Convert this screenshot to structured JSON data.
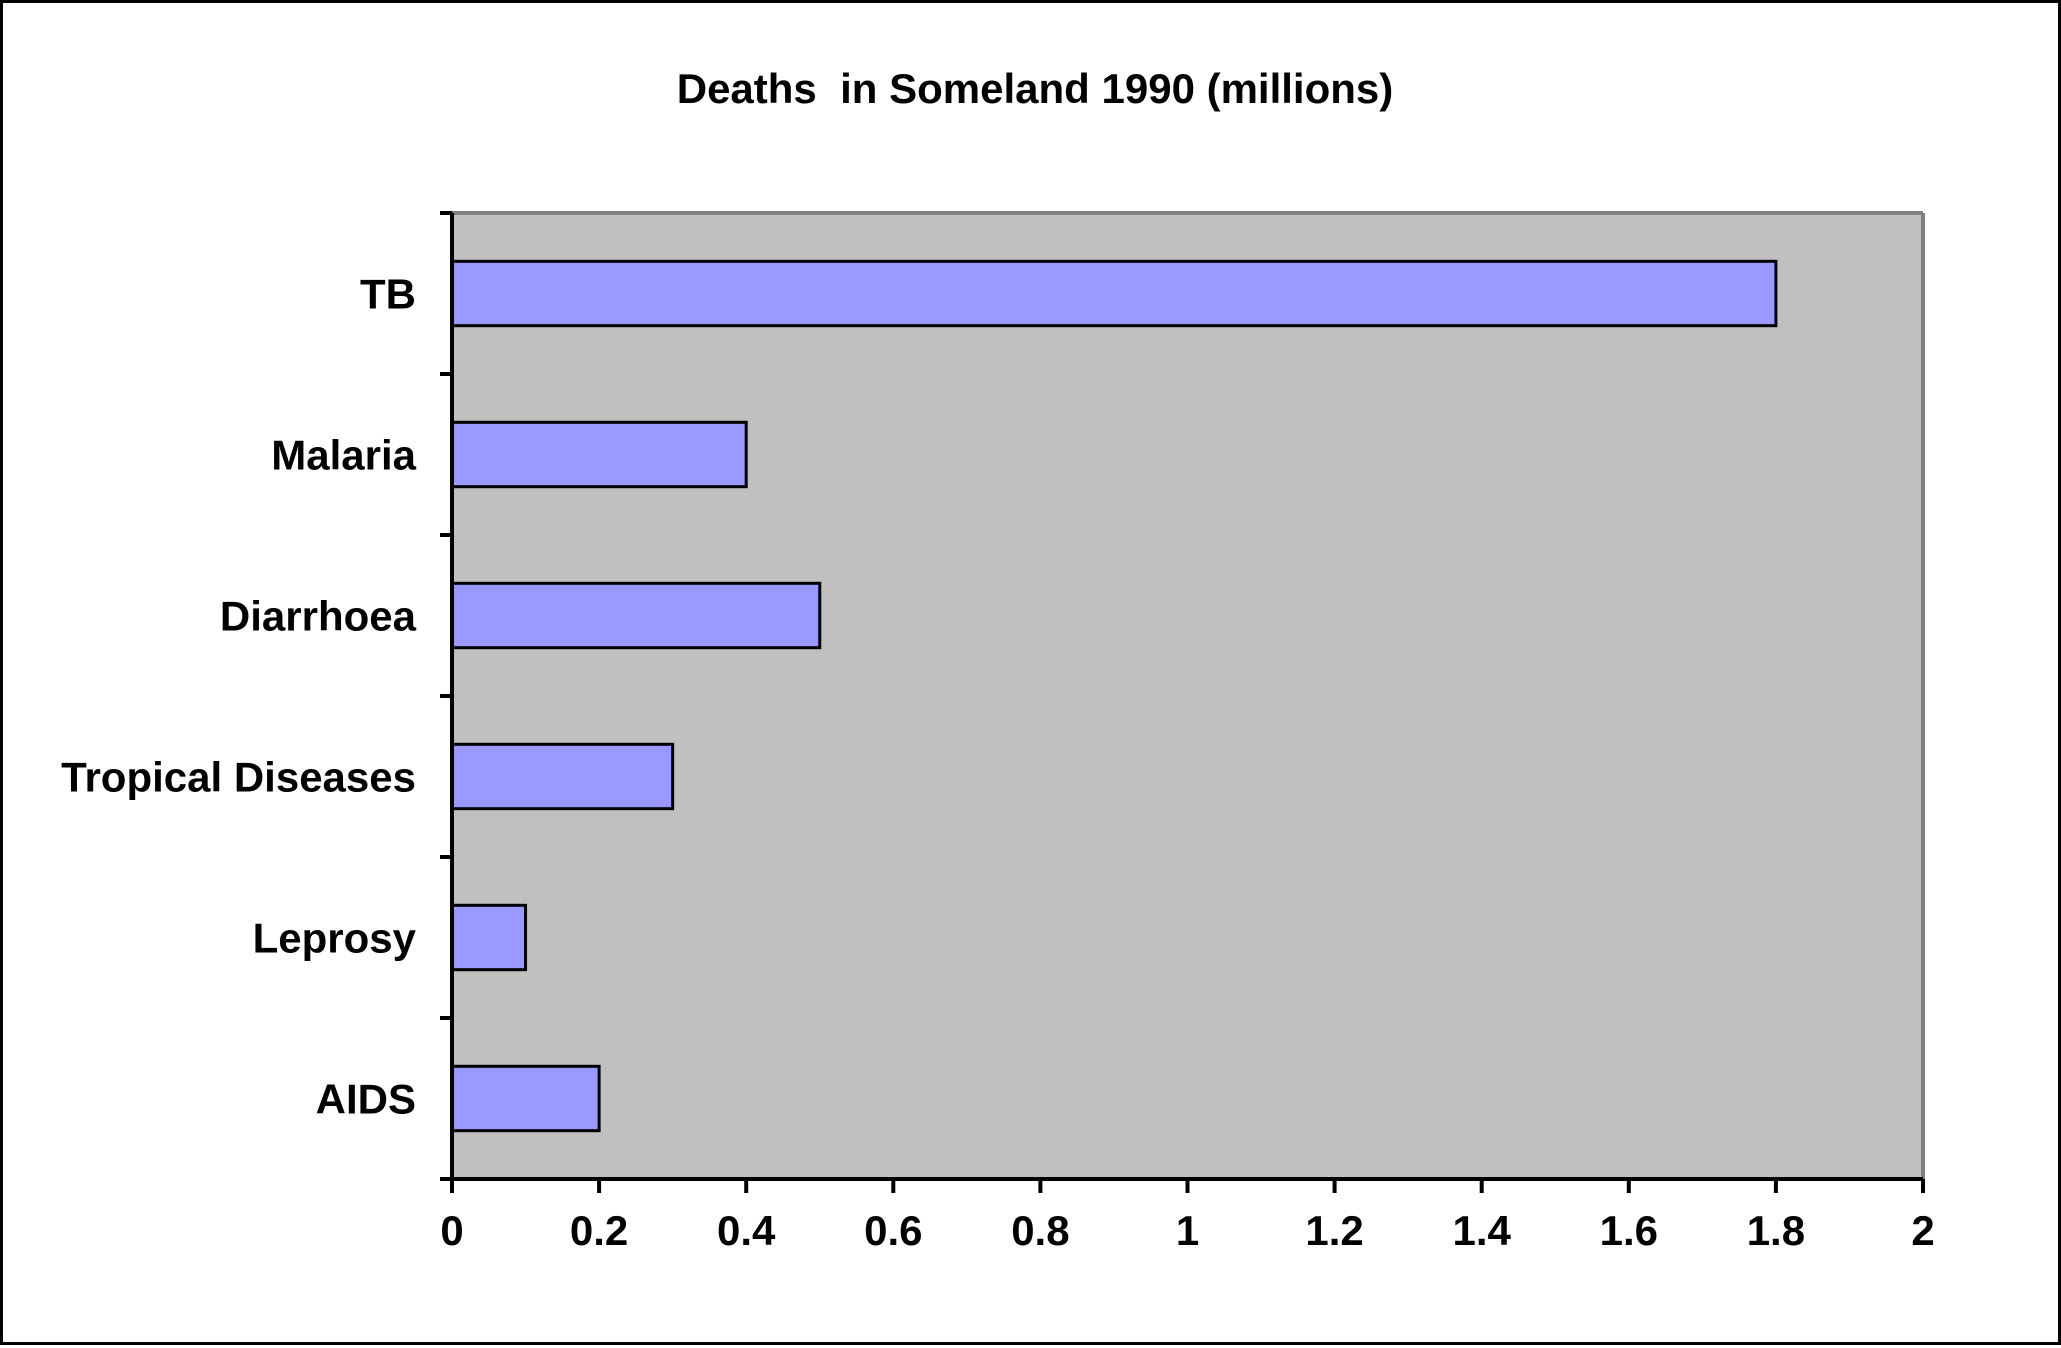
{
  "chart_data": {
    "type": "bar",
    "orientation": "horizontal",
    "title": "Deaths  in Someland 1990 (millions)",
    "xlabel": "",
    "ylabel": "",
    "categories": [
      "TB",
      "Malaria",
      "Diarrhoea",
      "Tropical Diseases",
      "Leprosy",
      "AIDS"
    ],
    "values": [
      1.8,
      0.4,
      0.5,
      0.3,
      0.1,
      0.2
    ],
    "xlim": [
      0,
      2
    ],
    "xticks": [
      "0",
      "0.2",
      "0.4",
      "0.6",
      "0.8",
      "1",
      "1.2",
      "1.4",
      "1.6",
      "1.8",
      "2"
    ],
    "grid": false,
    "legend": "none",
    "colors": {
      "bar_fill": "#9999ff",
      "bar_stroke": "#000000",
      "plot_background": "#c0c0c0",
      "page_background": "#ffffff"
    }
  }
}
